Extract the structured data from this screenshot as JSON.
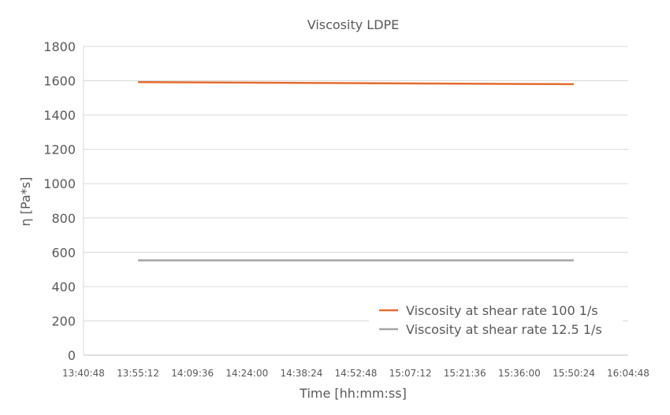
{
  "chart_data": {
    "type": "line",
    "title": "Viscosity LDPE",
    "xlabel": "Time [hh:mm:ss]",
    "ylabel": "η [Pa*s]",
    "ylim": [
      0,
      1800
    ],
    "yticks": [
      "0",
      "200",
      "400",
      "600",
      "800",
      "1000",
      "1200",
      "1400",
      "1600",
      "1800"
    ],
    "xticks": [
      "13:40:48",
      "13:55:12",
      "14:09:36",
      "14:24:00",
      "14:38:24",
      "14:52:48",
      "15:07:12",
      "15:21:36",
      "15:36:00",
      "15:50:24",
      "16:04:48"
    ],
    "xlim": [
      "13:40:48",
      "16:04:48"
    ],
    "grid": true,
    "legend_position": "bottom-right",
    "series": [
      {
        "name": "Viscosity at shear rate 100 1/s",
        "color": "#E36C2F",
        "x": [
          "13:55:12",
          "15:50:24"
        ],
        "values": [
          1592,
          1580
        ]
      },
      {
        "name": "Viscosity at shear rate 12.5 1/s",
        "color": "#A5A5A5",
        "x": [
          "13:55:12",
          "15:50:24"
        ],
        "values": [
          553,
          553
        ]
      }
    ]
  }
}
